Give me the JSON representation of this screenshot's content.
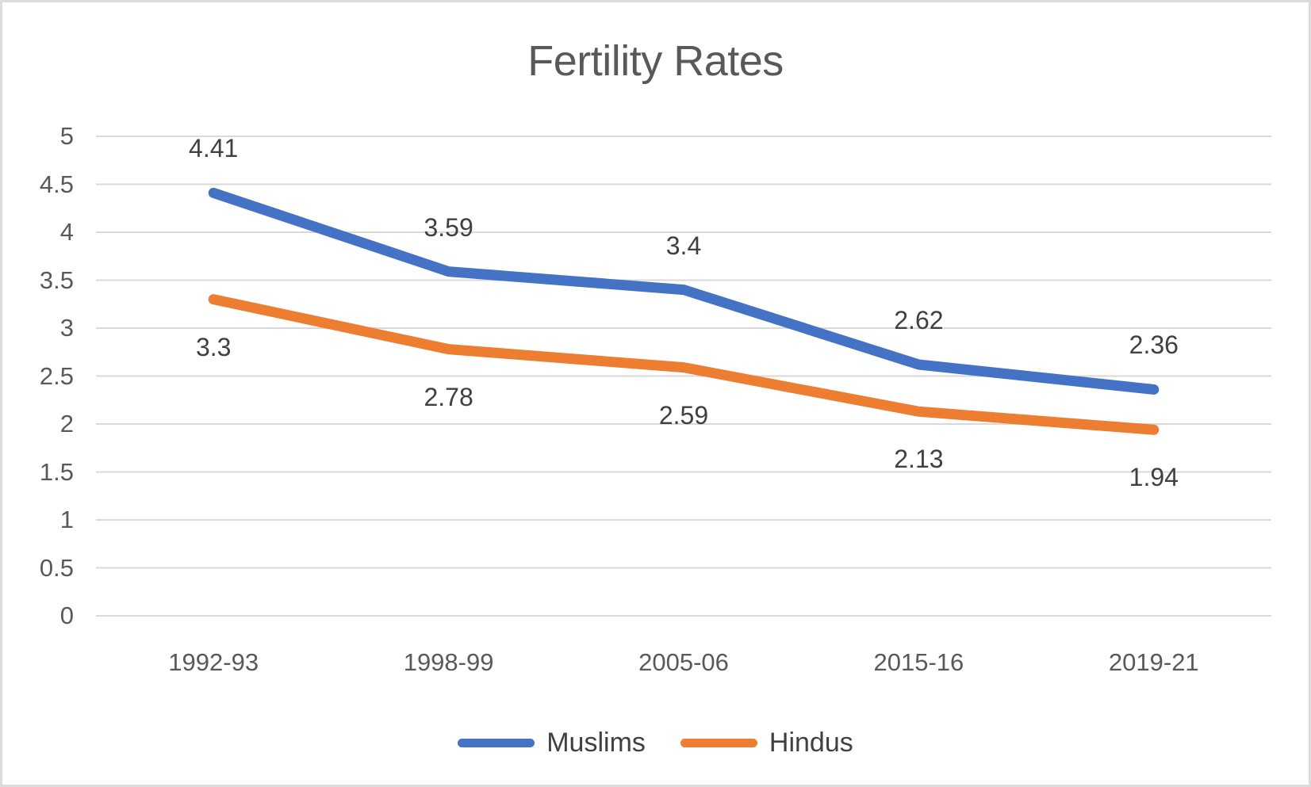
{
  "chart_data": {
    "type": "line",
    "title": "Fertility Rates",
    "categories": [
      "1992-93",
      "1998-99",
      "2005-06",
      "2015-16",
      "2019-21"
    ],
    "series": [
      {
        "name": "Muslims",
        "color": "#4472C4",
        "values": [
          4.41,
          3.59,
          3.4,
          2.62,
          2.36
        ],
        "data_labels": [
          "4.41",
          "3.59",
          "3.4",
          "2.62",
          "2.36"
        ],
        "label_position": "above"
      },
      {
        "name": "Hindus",
        "color": "#ED7D31",
        "values": [
          3.3,
          2.78,
          2.59,
          2.13,
          1.94
        ],
        "data_labels": [
          "3.3",
          "2.78",
          "2.59",
          "2.13",
          "1.94"
        ],
        "label_position": "below"
      }
    ],
    "xlabel": "",
    "ylabel": "",
    "ylim": [
      0,
      5
    ],
    "ytick_step": 0.5,
    "ytick_labels": [
      "0",
      "0.5",
      "1",
      "1.5",
      "2",
      "2.5",
      "3",
      "3.5",
      "4",
      "4.5",
      "5"
    ],
    "grid": true,
    "gridline_color": "#D9D9D9",
    "legend_position": "bottom",
    "title_color": "#595959",
    "axis_text_color": "#595959",
    "data_label_color": "#404040"
  }
}
